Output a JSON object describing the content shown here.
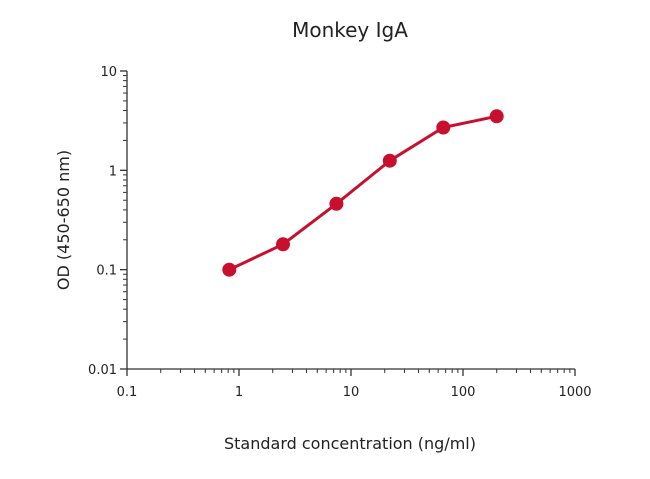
{
  "chart_data": {
    "type": "line",
    "title": "Monkey IgA",
    "xlabel": "Standard concentration (ng/ml)",
    "ylabel": "OD (450-650 nm)",
    "x_scale": "log",
    "y_scale": "log",
    "xlim": [
      0.1,
      1000
    ],
    "ylim": [
      0.01,
      10
    ],
    "x_ticks": [
      0.1,
      1,
      10,
      100,
      1000
    ],
    "x_tick_labels": [
      "0.1",
      "1",
      "10",
      "100",
      "1000"
    ],
    "y_ticks": [
      0.01,
      0.1,
      1,
      10
    ],
    "y_tick_labels": [
      "0.01",
      "0.1",
      "1",
      "10"
    ],
    "grid": false,
    "legend": "none",
    "colors": {
      "series": "#c8102e",
      "axis": "#333333"
    },
    "series": [
      {
        "x": [
          0.82,
          2.47,
          7.4,
          22.2,
          66.7,
          200
        ],
        "y": [
          0.1,
          0.18,
          0.46,
          1.25,
          2.7,
          3.5
        ]
      }
    ]
  }
}
